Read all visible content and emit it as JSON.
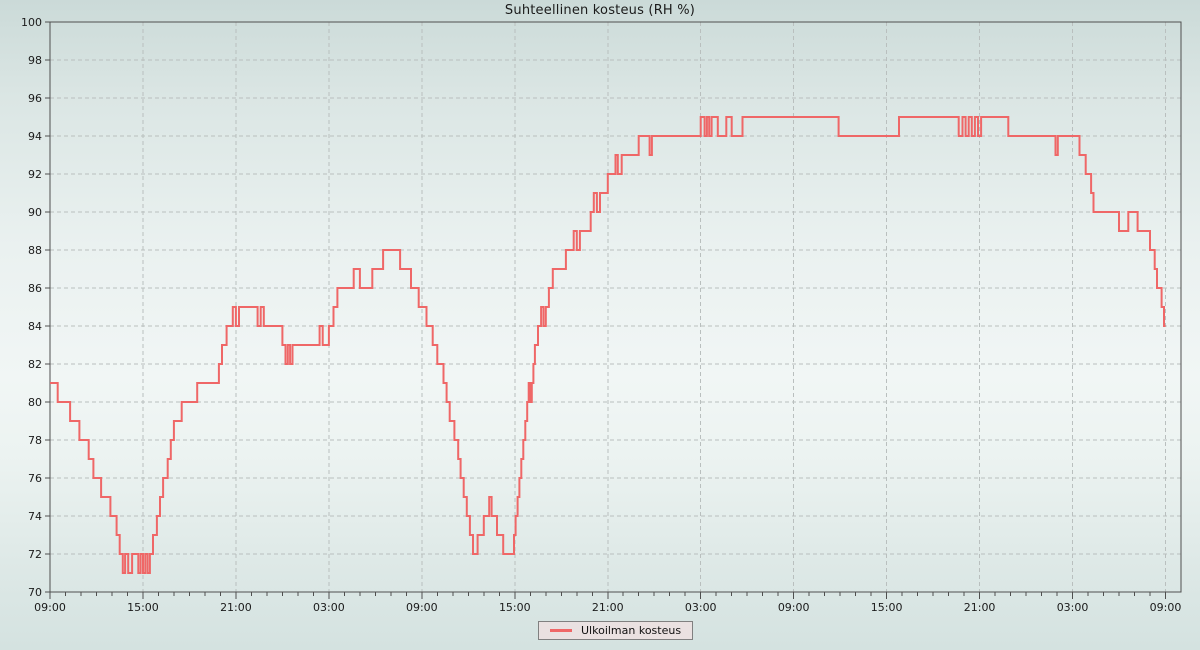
{
  "page": {
    "title": "Suhteellinen kosteus (RH %)"
  },
  "legend": {
    "label": "Ulkoilman kosteus"
  },
  "colors": {
    "line": "#ef6767",
    "grid": "#b9bfbe",
    "axis": "#4f4f4f",
    "text": "#1b1b1b",
    "legend_bg": "#eae1e1",
    "legend_border": "#808080"
  },
  "chart_data": {
    "type": "line",
    "step": true,
    "title": "Suhteellinen kosteus (RH %)",
    "legend_position": "bottom-center",
    "grid": "dashed, major only",
    "x_axis": {
      "unit": "time of day over 3 days",
      "tick_labels": [
        "09:00",
        "15:00",
        "21:00",
        "03:00",
        "09:00",
        "15:00",
        "21:00",
        "03:00",
        "09:00",
        "15:00",
        "21:00",
        "03:00",
        "09:00"
      ],
      "major_every_hours": 6,
      "minor_every_hours": 1,
      "data_range_hours": [
        0,
        72
      ],
      "plot_range_hours": [
        0,
        73
      ]
    },
    "y_axis": {
      "min": 70,
      "max": 100,
      "tick_step": 2
    },
    "series": [
      {
        "name": "Ulkoilman kosteus",
        "color": "#ef6767",
        "points_format": "[hours_from_start, RH_percent] step-hold until next point",
        "points": [
          [
            0,
            81
          ],
          [
            0.5,
            80
          ],
          [
            1.3,
            79
          ],
          [
            1.9,
            78
          ],
          [
            2.5,
            77
          ],
          [
            2.8,
            76
          ],
          [
            3.3,
            75
          ],
          [
            3.9,
            74
          ],
          [
            4.3,
            73
          ],
          [
            4.5,
            72
          ],
          [
            4.7,
            71
          ],
          [
            4.85,
            72
          ],
          [
            5.05,
            71
          ],
          [
            5.3,
            72
          ],
          [
            5.7,
            71
          ],
          [
            5.85,
            72
          ],
          [
            6.0,
            71
          ],
          [
            6.15,
            72
          ],
          [
            6.3,
            71
          ],
          [
            6.45,
            72
          ],
          [
            6.65,
            73
          ],
          [
            6.9,
            74
          ],
          [
            7.1,
            75
          ],
          [
            7.3,
            76
          ],
          [
            7.6,
            77
          ],
          [
            7.8,
            78
          ],
          [
            8.0,
            79
          ],
          [
            8.5,
            80
          ],
          [
            9.5,
            81
          ],
          [
            10.9,
            82
          ],
          [
            11.1,
            83
          ],
          [
            11.4,
            84
          ],
          [
            11.8,
            85
          ],
          [
            12.0,
            84
          ],
          [
            12.2,
            85
          ],
          [
            13.4,
            84
          ],
          [
            13.6,
            85
          ],
          [
            13.8,
            84
          ],
          [
            15.0,
            83
          ],
          [
            15.2,
            82
          ],
          [
            15.35,
            83
          ],
          [
            15.5,
            82
          ],
          [
            15.65,
            83
          ],
          [
            17.4,
            84
          ],
          [
            17.6,
            83
          ],
          [
            18.0,
            84
          ],
          [
            18.3,
            85
          ],
          [
            18.55,
            86
          ],
          [
            19.6,
            87
          ],
          [
            20.0,
            86
          ],
          [
            20.8,
            87
          ],
          [
            21.5,
            88
          ],
          [
            22.6,
            87
          ],
          [
            23.3,
            86
          ],
          [
            23.8,
            85
          ],
          [
            24.3,
            84
          ],
          [
            24.7,
            83
          ],
          [
            25.0,
            82
          ],
          [
            25.4,
            81
          ],
          [
            25.6,
            80
          ],
          [
            25.8,
            79
          ],
          [
            26.1,
            78
          ],
          [
            26.35,
            77
          ],
          [
            26.5,
            76
          ],
          [
            26.7,
            75
          ],
          [
            26.9,
            74
          ],
          [
            27.1,
            73
          ],
          [
            27.3,
            72
          ],
          [
            27.6,
            73
          ],
          [
            28.0,
            74
          ],
          [
            28.35,
            75
          ],
          [
            28.5,
            74
          ],
          [
            28.85,
            73
          ],
          [
            29.25,
            72
          ],
          [
            29.95,
            73
          ],
          [
            30.05,
            74
          ],
          [
            30.18,
            75
          ],
          [
            30.3,
            76
          ],
          [
            30.42,
            77
          ],
          [
            30.55,
            78
          ],
          [
            30.68,
            79
          ],
          [
            30.8,
            80
          ],
          [
            30.9,
            81
          ],
          [
            31.0,
            80
          ],
          [
            31.1,
            81
          ],
          [
            31.2,
            82
          ],
          [
            31.3,
            83
          ],
          [
            31.5,
            84
          ],
          [
            31.7,
            85
          ],
          [
            31.85,
            84
          ],
          [
            32.0,
            85
          ],
          [
            32.2,
            86
          ],
          [
            32.45,
            87
          ],
          [
            33.3,
            88
          ],
          [
            33.8,
            89
          ],
          [
            34.0,
            88
          ],
          [
            34.2,
            89
          ],
          [
            34.9,
            90
          ],
          [
            35.1,
            91
          ],
          [
            35.3,
            90
          ],
          [
            35.5,
            91
          ],
          [
            36.0,
            92
          ],
          [
            36.5,
            93
          ],
          [
            36.65,
            92
          ],
          [
            36.9,
            93
          ],
          [
            38.0,
            94
          ],
          [
            38.7,
            93
          ],
          [
            38.85,
            94
          ],
          [
            42.0,
            95
          ],
          [
            42.25,
            94
          ],
          [
            42.4,
            95
          ],
          [
            42.55,
            94
          ],
          [
            42.7,
            95
          ],
          [
            43.1,
            94
          ],
          [
            43.65,
            95
          ],
          [
            44.0,
            94
          ],
          [
            44.7,
            95
          ],
          [
            50.9,
            94
          ],
          [
            54.8,
            95
          ],
          [
            58.65,
            94
          ],
          [
            58.9,
            95
          ],
          [
            59.1,
            94
          ],
          [
            59.3,
            95
          ],
          [
            59.5,
            94
          ],
          [
            59.7,
            95
          ],
          [
            59.9,
            94
          ],
          [
            60.1,
            95
          ],
          [
            61.85,
            94
          ],
          [
            64.9,
            93
          ],
          [
            65.05,
            94
          ],
          [
            66.45,
            93
          ],
          [
            66.85,
            92
          ],
          [
            67.2,
            91
          ],
          [
            67.35,
            90
          ],
          [
            69.0,
            89
          ],
          [
            69.6,
            90
          ],
          [
            70.2,
            89
          ],
          [
            71.0,
            88
          ],
          [
            71.3,
            87
          ],
          [
            71.45,
            86
          ],
          [
            71.75,
            85
          ],
          [
            71.9,
            84
          ],
          [
            72,
            84
          ]
        ]
      }
    ]
  }
}
